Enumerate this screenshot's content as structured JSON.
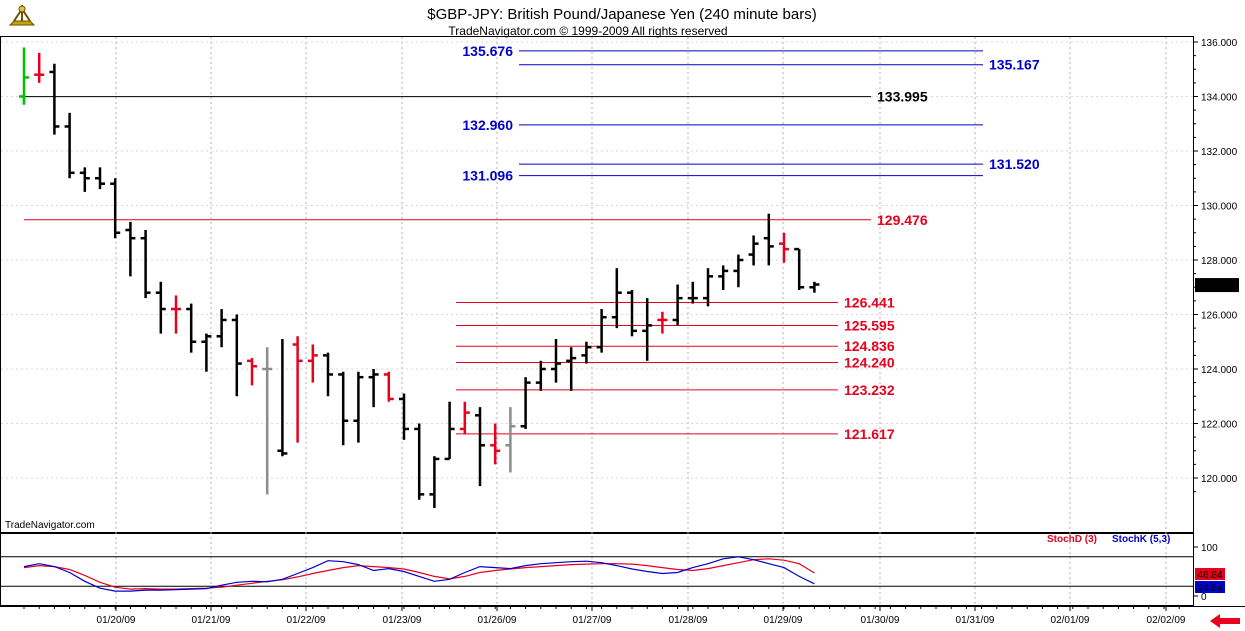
{
  "header": {
    "title": "$GBP-JPY:  British Pound/Japanese Yen  (240 minute bars)",
    "subtitle": "TradeNavigator.com © 1999-2009 All rights reserved",
    "watermark": "TradeNavigator.com"
  },
  "colors": {
    "up_bar": "#000000",
    "red_bar": "#e8001c",
    "gray_bar": "#8c8c8c",
    "blue_level": "#0000cc",
    "red_level": "#e8001c",
    "black_level": "#000000",
    "stoch_d": "#e8001c",
    "stoch_k": "#0000cc"
  },
  "chart_data": {
    "type": "ohlc",
    "ylim": [
      119,
      136
    ],
    "y_ticks": [
      "136.000",
      "134.000",
      "132.000",
      "130.000",
      "128.000",
      "126.000",
      "124.000",
      "122.000",
      "120.000"
    ],
    "x_ticks": [
      "01/20/09",
      "01/21/09",
      "01/22/09",
      "01/23/09",
      "01/26/09",
      "01/27/09",
      "01/28/09",
      "01/29/09",
      "01/30/09",
      "01/31/09",
      "02/01/09",
      "02/02/09"
    ],
    "last_price": "127.080",
    "bars": [
      {
        "i": 0,
        "o": 134.0,
        "h": 135.8,
        "l": 133.7,
        "c": 134.7,
        "color": "green"
      },
      {
        "i": 1,
        "o": 134.8,
        "h": 135.6,
        "l": 134.5,
        "c": 134.8,
        "color": "red"
      },
      {
        "i": 2,
        "o": 134.9,
        "h": 135.2,
        "l": 132.6,
        "c": 132.9,
        "color": "black"
      },
      {
        "i": 3,
        "o": 132.9,
        "h": 133.4,
        "l": 131.0,
        "c": 131.2,
        "color": "black"
      },
      {
        "i": 4,
        "o": 131.2,
        "h": 131.4,
        "l": 130.5,
        "c": 131.0,
        "color": "black"
      },
      {
        "i": 5,
        "o": 131.0,
        "h": 131.4,
        "l": 130.6,
        "c": 130.8,
        "color": "black"
      },
      {
        "i": 6,
        "o": 130.8,
        "h": 131.0,
        "l": 128.8,
        "c": 129.0,
        "color": "black"
      },
      {
        "i": 7,
        "o": 129.1,
        "h": 129.4,
        "l": 127.4,
        "c": 128.8,
        "color": "black"
      },
      {
        "i": 8,
        "o": 128.8,
        "h": 129.1,
        "l": 126.6,
        "c": 126.8,
        "color": "black"
      },
      {
        "i": 9,
        "o": 126.8,
        "h": 127.2,
        "l": 125.3,
        "c": 126.2,
        "color": "black"
      },
      {
        "i": 10,
        "o": 126.2,
        "h": 126.7,
        "l": 125.3,
        "c": 126.2,
        "color": "red"
      },
      {
        "i": 11,
        "o": 126.2,
        "h": 126.4,
        "l": 124.6,
        "c": 125.0,
        "color": "black"
      },
      {
        "i": 12,
        "o": 125.0,
        "h": 125.3,
        "l": 123.9,
        "c": 125.2,
        "color": "black"
      },
      {
        "i": 13,
        "o": 125.2,
        "h": 126.2,
        "l": 124.8,
        "c": 125.8,
        "color": "black"
      },
      {
        "i": 14,
        "o": 125.8,
        "h": 126.0,
        "l": 123.0,
        "c": 124.2,
        "color": "black"
      },
      {
        "i": 15,
        "o": 124.3,
        "h": 124.4,
        "l": 123.4,
        "c": 124.1,
        "color": "red"
      },
      {
        "i": 16,
        "o": 124.0,
        "h": 124.8,
        "l": 119.4,
        "c": 124.0,
        "color": "gray"
      },
      {
        "i": 17,
        "o": 121.0,
        "h": 125.1,
        "l": 120.8,
        "c": 120.9,
        "color": "black"
      },
      {
        "i": 18,
        "o": 124.9,
        "h": 125.2,
        "l": 121.3,
        "c": 124.3,
        "color": "red"
      },
      {
        "i": 19,
        "o": 124.3,
        "h": 124.9,
        "l": 123.5,
        "c": 124.5,
        "color": "red"
      },
      {
        "i": 20,
        "o": 124.5,
        "h": 124.6,
        "l": 123.0,
        "c": 123.8,
        "color": "black"
      },
      {
        "i": 21,
        "o": 123.8,
        "h": 123.9,
        "l": 121.2,
        "c": 122.1,
        "color": "black"
      },
      {
        "i": 22,
        "o": 122.1,
        "h": 123.9,
        "l": 121.3,
        "c": 123.7,
        "color": "black"
      },
      {
        "i": 23,
        "o": 123.7,
        "h": 124.0,
        "l": 122.6,
        "c": 123.8,
        "color": "black"
      },
      {
        "i": 24,
        "o": 123.8,
        "h": 123.9,
        "l": 122.8,
        "c": 122.9,
        "color": "red"
      },
      {
        "i": 25,
        "o": 122.9,
        "h": 123.1,
        "l": 121.4,
        "c": 121.8,
        "color": "black"
      },
      {
        "i": 26,
        "o": 121.8,
        "h": 122.0,
        "l": 119.2,
        "c": 119.4,
        "color": "black"
      },
      {
        "i": 27,
        "o": 119.4,
        "h": 120.8,
        "l": 118.9,
        "c": 120.7,
        "color": "black"
      },
      {
        "i": 28,
        "o": 120.7,
        "h": 122.8,
        "l": 120.7,
        "c": 121.8,
        "color": "black"
      },
      {
        "i": 29,
        "o": 121.8,
        "h": 122.8,
        "l": 121.6,
        "c": 122.4,
        "color": "red"
      },
      {
        "i": 30,
        "o": 122.3,
        "h": 122.6,
        "l": 119.7,
        "c": 121.2,
        "color": "black"
      },
      {
        "i": 31,
        "o": 121.2,
        "h": 122.0,
        "l": 120.5,
        "c": 121.0,
        "color": "red"
      },
      {
        "i": 32,
        "o": 121.2,
        "h": 122.6,
        "l": 120.2,
        "c": 121.9,
        "color": "gray"
      },
      {
        "i": 33,
        "o": 121.9,
        "h": 123.7,
        "l": 121.8,
        "c": 123.5,
        "color": "black"
      },
      {
        "i": 34,
        "o": 123.5,
        "h": 124.3,
        "l": 123.2,
        "c": 124.0,
        "color": "black"
      },
      {
        "i": 35,
        "o": 124.0,
        "h": 125.1,
        "l": 123.5,
        "c": 124.2,
        "color": "black"
      },
      {
        "i": 36,
        "o": 124.3,
        "h": 124.8,
        "l": 123.2,
        "c": 124.4,
        "color": "black"
      },
      {
        "i": 37,
        "o": 124.5,
        "h": 125.0,
        "l": 124.2,
        "c": 124.8,
        "color": "black"
      },
      {
        "i": 38,
        "o": 124.8,
        "h": 126.2,
        "l": 124.6,
        "c": 125.9,
        "color": "black"
      },
      {
        "i": 39,
        "o": 125.9,
        "h": 127.7,
        "l": 125.5,
        "c": 126.8,
        "color": "black"
      },
      {
        "i": 40,
        "o": 126.8,
        "h": 126.9,
        "l": 125.2,
        "c": 125.4,
        "color": "black"
      },
      {
        "i": 41,
        "o": 125.4,
        "h": 126.6,
        "l": 124.3,
        "c": 125.6,
        "color": "black"
      },
      {
        "i": 42,
        "o": 125.8,
        "h": 126.1,
        "l": 125.3,
        "c": 125.8,
        "color": "red"
      },
      {
        "i": 43,
        "o": 125.8,
        "h": 127.1,
        "l": 125.6,
        "c": 126.6,
        "color": "black"
      },
      {
        "i": 44,
        "o": 126.6,
        "h": 127.2,
        "l": 126.4,
        "c": 126.6,
        "color": "black"
      },
      {
        "i": 45,
        "o": 126.6,
        "h": 127.7,
        "l": 126.3,
        "c": 127.4,
        "color": "black"
      },
      {
        "i": 46,
        "o": 127.4,
        "h": 127.8,
        "l": 126.9,
        "c": 127.6,
        "color": "black"
      },
      {
        "i": 47,
        "o": 127.6,
        "h": 128.2,
        "l": 127.0,
        "c": 128.0,
        "color": "black"
      },
      {
        "i": 48,
        "o": 128.2,
        "h": 128.9,
        "l": 127.8,
        "c": 128.6,
        "color": "black"
      },
      {
        "i": 49,
        "o": 128.8,
        "h": 129.7,
        "l": 127.8,
        "c": 128.5,
        "color": "black"
      },
      {
        "i": 50,
        "o": 128.6,
        "h": 129.0,
        "l": 127.9,
        "c": 128.4,
        "color": "red"
      },
      {
        "i": 51,
        "o": 128.4,
        "h": 128.4,
        "l": 126.9,
        "c": 127.0,
        "color": "black"
      },
      {
        "i": 52,
        "o": 127.0,
        "h": 127.2,
        "l": 126.8,
        "c": 127.1,
        "color": "black"
      }
    ],
    "levels": [
      {
        "value": 135.676,
        "label": "135.676",
        "color": "blue",
        "x_from": 22,
        "x_to": 50,
        "label_side": "left"
      },
      {
        "value": 135.167,
        "label": "135.167",
        "color": "blue",
        "x_from": 22,
        "x_to": 50,
        "label_side": "right"
      },
      {
        "value": 133.995,
        "label": "133.995",
        "color": "black",
        "x_from": 0,
        "x_to": 45,
        "label_side": "right"
      },
      {
        "value": 132.96,
        "label": "132.960",
        "color": "blue",
        "x_from": 22,
        "x_to": 50,
        "label_side": "left"
      },
      {
        "value": 131.52,
        "label": "131.520",
        "color": "blue",
        "x_from": 22,
        "x_to": 50,
        "label_side": "right"
      },
      {
        "value": 131.096,
        "label": "131.096",
        "color": "blue",
        "x_from": 22,
        "x_to": 50,
        "label_side": "left"
      },
      {
        "value": 129.476,
        "label": "129.476",
        "color": "red",
        "x_from": 0,
        "x_to": 45,
        "label_side": "right"
      },
      {
        "value": 126.441,
        "label": "126.441",
        "color": "red",
        "x_from": 23,
        "x_to": 43,
        "label_side": "right"
      },
      {
        "value": 125.595,
        "label": "125.595",
        "color": "red",
        "x_from": 23,
        "x_to": 43,
        "label_side": "right"
      },
      {
        "value": 124.836,
        "label": "124.836",
        "color": "red",
        "x_from": 23,
        "x_to": 43,
        "label_side": "right"
      },
      {
        "value": 124.24,
        "label": "124.240",
        "color": "red",
        "x_from": 23,
        "x_to": 43,
        "label_side": "right"
      },
      {
        "value": 123.232,
        "label": "123.232",
        "color": "red",
        "x_from": 23,
        "x_to": 43,
        "label_side": "right"
      },
      {
        "value": 121.617,
        "label": "121.617",
        "color": "red",
        "x_from": 23,
        "x_to": 43,
        "label_side": "right"
      }
    ],
    "stochastic": {
      "ylim": [
        0,
        100
      ],
      "y_ticks": [
        "100",
        "0"
      ],
      "upper_band": 80,
      "lower_band": 20,
      "stoch_d_label": "StochD (3)",
      "stoch_k_label": "StochK (5,3)",
      "stoch_d_value": "46.84",
      "stoch_k_value": "24.84",
      "stoch_d": [
        58,
        62,
        60,
        54,
        42,
        28,
        18,
        14,
        15,
        14,
        14,
        15,
        16,
        18,
        22,
        26,
        30,
        33,
        39,
        46,
        52,
        58,
        62,
        60,
        58,
        55,
        48,
        40,
        35,
        40,
        48,
        52,
        55,
        58,
        60,
        62,
        64,
        65,
        66,
        66,
        65,
        62,
        58,
        54,
        52,
        56,
        62,
        68,
        74,
        76,
        73,
        66,
        46.84
      ],
      "stoch_k": [
        60,
        66,
        60,
        48,
        30,
        16,
        10,
        10,
        12,
        12,
        13,
        14,
        15,
        22,
        28,
        30,
        29,
        34,
        46,
        58,
        72,
        70,
        64,
        52,
        56,
        50,
        40,
        30,
        34,
        48,
        60,
        58,
        56,
        62,
        66,
        68,
        70,
        71,
        68,
        62,
        55,
        50,
        46,
        48,
        58,
        66,
        76,
        80,
        74,
        66,
        58,
        40,
        24.84
      ]
    }
  }
}
